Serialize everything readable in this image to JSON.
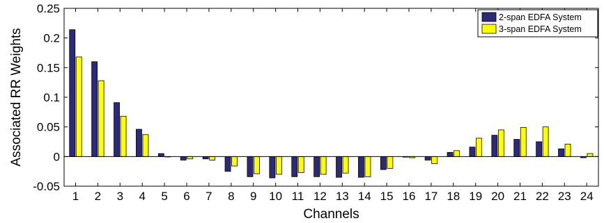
{
  "chart_data": {
    "type": "bar",
    "xlabel": "Channels",
    "ylabel": "Associated RR Weights",
    "ylim": [
      -0.05,
      0.25
    ],
    "yticks": [
      -0.05,
      0,
      0.05,
      0.1,
      0.15,
      0.2,
      0.25
    ],
    "ytick_labels": [
      "-0.05",
      "0",
      "0.05",
      "0.1",
      "0.15",
      "0.2",
      "0.25"
    ],
    "categories": [
      "1",
      "2",
      "3",
      "4",
      "5",
      "6",
      "7",
      "8",
      "9",
      "10",
      "11",
      "12",
      "13",
      "14",
      "15",
      "16",
      "17",
      "18",
      "19",
      "20",
      "21",
      "22",
      "23",
      "24"
    ],
    "legend_position": "top-right",
    "grid": false,
    "series": [
      {
        "name": "2-span EDFA System",
        "color": "#2e2a7a",
        "values": [
          0.214,
          0.16,
          0.091,
          0.046,
          0.005,
          -0.006,
          -0.004,
          -0.025,
          -0.034,
          -0.036,
          -0.034,
          -0.034,
          -0.035,
          -0.035,
          -0.022,
          -0.001,
          -0.006,
          0.007,
          0.016,
          0.036,
          0.029,
          0.025,
          0.013,
          -0.002
        ]
      },
      {
        "name": "3-span EDFA System",
        "color": "#ffff00",
        "values": [
          0.168,
          0.128,
          0.068,
          0.037,
          0.0,
          -0.004,
          -0.006,
          -0.016,
          -0.029,
          -0.03,
          -0.027,
          -0.03,
          -0.028,
          -0.034,
          -0.02,
          -0.002,
          -0.012,
          0.01,
          0.031,
          0.045,
          0.049,
          0.05,
          0.021,
          0.005
        ]
      }
    ]
  }
}
